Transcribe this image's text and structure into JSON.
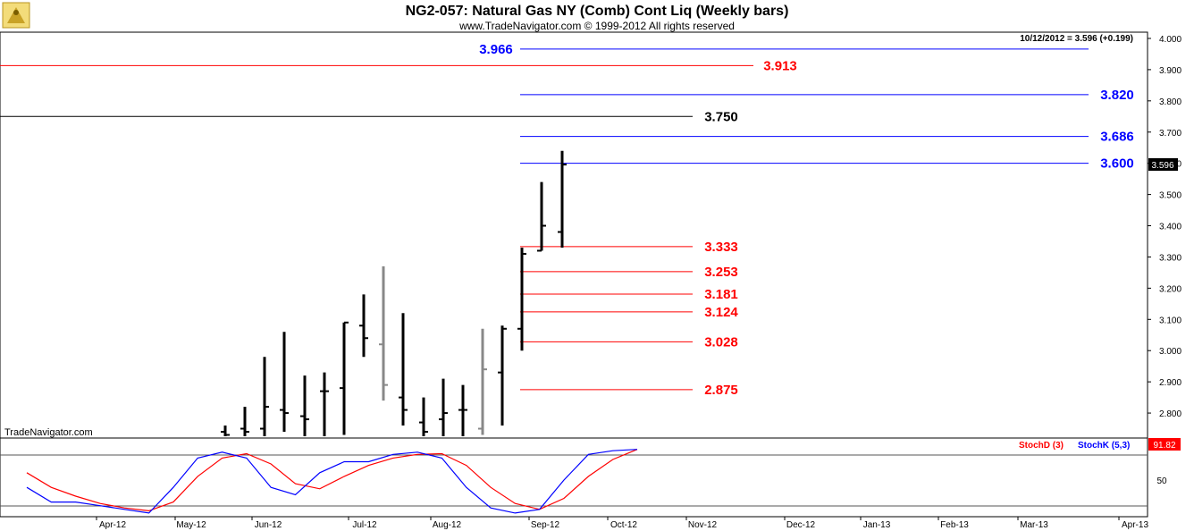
{
  "header": {
    "title": "NG2-057:  Natural Gas NY (Comb) Cont Liq  (Weekly bars)",
    "subtitle": "www.TradeNavigator.com © 1999-2012 All rights reserved",
    "last_info": "10/12/2012 = 3.596 (+0.199)"
  },
  "watermark": "TradeNavigator.com",
  "price_panel": {
    "last_price_label": "3.596",
    "ylim": [
      2.72,
      4.02
    ],
    "ticks": [
      "2.800",
      "2.900",
      "3.000",
      "3.100",
      "3.200",
      "3.300",
      "3.400",
      "3.500",
      "3.600",
      "3.700",
      "3.800",
      "3.900",
      "4.000"
    ],
    "tick_values": [
      2.8,
      2.9,
      3.0,
      3.1,
      3.2,
      3.3,
      3.4,
      3.5,
      3.6,
      3.7,
      3.8,
      3.9,
      4.0
    ]
  },
  "stoch_panel": {
    "stochd_label": "StochD (3)",
    "stochk_label": "StochK (5,3)",
    "last_value_label": "91.82",
    "tick_label": "50",
    "ylim": [
      0,
      100
    ],
    "colors": {
      "stochd": "#ff0000",
      "stochk": "#0000ff"
    }
  },
  "x_axis": {
    "labels": [
      "Apr-12",
      "May-12",
      "Jun-12",
      "Jul-12",
      "Aug-12",
      "Sep-12",
      "Oct-12",
      "Nov-12",
      "Dec-12",
      "Jan-13",
      "Feb-13",
      "Mar-13",
      "Apr-13"
    ]
  },
  "levels": [
    {
      "value": 3.966,
      "label": "3.966",
      "color": "#0000ff"
    },
    {
      "value": 3.913,
      "label": "3.913",
      "color": "#ff0000"
    },
    {
      "value": 3.82,
      "label": "3.820",
      "color": "#0000ff"
    },
    {
      "value": 3.75,
      "label": "3.750",
      "color": "#000000"
    },
    {
      "value": 3.686,
      "label": "3.686",
      "color": "#0000ff"
    },
    {
      "value": 3.6,
      "label": "3.600",
      "color": "#0000ff"
    },
    {
      "value": 3.333,
      "label": "3.333",
      "color": "#ff0000"
    },
    {
      "value": 3.253,
      "label": "3.253",
      "color": "#ff0000"
    },
    {
      "value": 3.181,
      "label": "3.181",
      "color": "#ff0000"
    },
    {
      "value": 3.124,
      "label": "3.124",
      "color": "#ff0000"
    },
    {
      "value": 3.028,
      "label": "3.028",
      "color": "#ff0000"
    },
    {
      "value": 2.875,
      "label": "2.875",
      "color": "#ff0000"
    }
  ],
  "chart_data": {
    "type": "ohlc",
    "title": "NG2-057:  Natural Gas NY (Comb) Cont Liq  (Weekly bars)",
    "bars": [
      {
        "h": 2.76,
        "l": 2.72,
        "o": 2.74,
        "c": 2.73,
        "color": "#000000"
      },
      {
        "h": 2.82,
        "l": 2.72,
        "o": 2.75,
        "c": 2.74,
        "color": "#000000"
      },
      {
        "h": 2.98,
        "l": 2.72,
        "o": 2.75,
        "c": 2.82,
        "color": "#000000"
      },
      {
        "h": 3.06,
        "l": 2.74,
        "o": 2.81,
        "c": 2.8,
        "color": "#000000"
      },
      {
        "h": 2.92,
        "l": 2.72,
        "o": 2.79,
        "c": 2.78,
        "color": "#000000"
      },
      {
        "h": 2.93,
        "l": 2.72,
        "o": 2.87,
        "c": 2.87,
        "color": "#000000"
      },
      {
        "h": 3.09,
        "l": 2.73,
        "o": 2.88,
        "c": 3.09,
        "color": "#000000"
      },
      {
        "h": 3.18,
        "l": 2.98,
        "o": 3.08,
        "c": 3.04,
        "color": "#000000"
      },
      {
        "h": 3.27,
        "l": 2.84,
        "o": 3.02,
        "c": 2.89,
        "color": "#888888"
      },
      {
        "h": 3.12,
        "l": 2.76,
        "o": 2.85,
        "c": 2.81,
        "color": "#000000"
      },
      {
        "h": 2.85,
        "l": 2.72,
        "o": 2.77,
        "c": 2.74,
        "color": "#000000"
      },
      {
        "h": 2.91,
        "l": 2.72,
        "o": 2.78,
        "c": 2.8,
        "color": "#000000"
      },
      {
        "h": 2.89,
        "l": 2.72,
        "o": 2.81,
        "c": 2.81,
        "color": "#000000"
      },
      {
        "h": 3.07,
        "l": 2.73,
        "o": 2.75,
        "c": 2.94,
        "color": "#888888"
      },
      {
        "h": 3.08,
        "l": 2.76,
        "o": 2.93,
        "c": 3.07,
        "color": "#000000"
      },
      {
        "h": 3.33,
        "l": 3.0,
        "o": 3.07,
        "c": 3.31,
        "color": "#000000"
      },
      {
        "h": 3.54,
        "l": 3.32,
        "o": 3.32,
        "c": 3.4,
        "color": "#000000"
      },
      {
        "h": 3.64,
        "l": 3.33,
        "o": 3.38,
        "c": 3.596,
        "color": "#000000"
      }
    ],
    "stoch_k": [
      40,
      20,
      20,
      15,
      10,
      5,
      40,
      80,
      88,
      80,
      40,
      30,
      60,
      75,
      75,
      85,
      88,
      80,
      40,
      12,
      5,
      10,
      50,
      85,
      90,
      91.82
    ],
    "stoch_d": [
      60,
      40,
      28,
      18,
      12,
      8,
      20,
      55,
      80,
      86,
      72,
      45,
      38,
      55,
      70,
      80,
      85,
      86,
      70,
      40,
      18,
      10,
      25,
      55,
      78,
      91.82
    ]
  }
}
